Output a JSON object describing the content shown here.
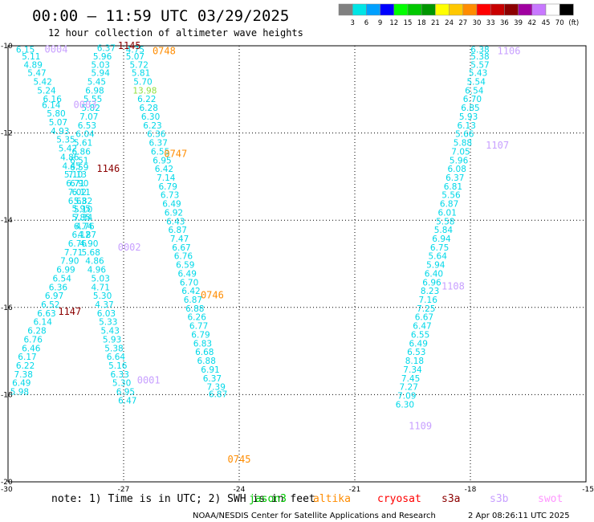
{
  "header": {
    "title": "00:00 — 11:59 UTC 03/29/2025",
    "subtitle": "12 hour collection of altimeter wave heights"
  },
  "colorbar": {
    "labels": [
      "3",
      "6",
      "9",
      "12",
      "15",
      "18",
      "21",
      "24",
      "27",
      "30",
      "33",
      "36",
      "39",
      "42",
      "45",
      "70"
    ],
    "unit": "(ft)",
    "colors": [
      "#808080",
      "#00e5e5",
      "#00a0ff",
      "#0000ff",
      "#00ff00",
      "#00c800",
      "#009600",
      "#ffff00",
      "#ffc800",
      "#ff8c00",
      "#ff0000",
      "#c80000",
      "#8c0000",
      "#a000a0",
      "#c878ff",
      "#ffffff",
      "#000000"
    ]
  },
  "footer": {
    "note": "note:  1) Time is in UTC; 2) SWH is in feet",
    "satellites": [
      {
        "name": "jason3",
        "color": "#00c800"
      },
      {
        "name": "altika",
        "color": "#ff8c00"
      },
      {
        "name": "cryosat",
        "color": "#ff0000"
      },
      {
        "name": "s3a",
        "color": "#8c0000"
      },
      {
        "name": "s3b",
        "color": "#c8a0ff"
      },
      {
        "name": "swot",
        "color": "#ff96ff"
      }
    ],
    "credit": "NOAA/NESDIS Center for Satellite Applications and Research",
    "timestamp": "2 Apr 08:26:11 UTC 2025"
  },
  "chart_data": {
    "type": "scatter",
    "title": "00:00 — 11:59 UTC 03/29/2025",
    "subtitle": "12 hour collection of altimeter wave heights",
    "xlabel": "",
    "ylabel": "",
    "x_ticks": [
      -30,
      -27,
      -24,
      -21,
      -18,
      -15
    ],
    "y_ticks": [
      -10,
      -12,
      -14,
      -16,
      -18,
      -20
    ],
    "xlim": [
      -30,
      -15
    ],
    "ylim": [
      -20,
      -10
    ],
    "grid": true,
    "value_unit": "ft",
    "point_color": "#00d8e8",
    "highlight_color": "#90e040",
    "series": [
      {
        "values": [
          6.15,
          5.11,
          4.89,
          5.47,
          5.42,
          5.24,
          6.16,
          6.14,
          5.8,
          5.07,
          4.93,
          5.35,
          5.42,
          4.86,
          4.45,
          5.1,
          6.71,
          7.02,
          6.63,
          5.95,
          7.34,
          6.74,
          6.12,
          6.76,
          7.71,
          7.9,
          6.99,
          6.54,
          6.36,
          6.97,
          6.52,
          6.63,
          6.14,
          6.28,
          6.76,
          6.46,
          6.17,
          6.22,
          7.38,
          6.49,
          5.98
        ],
        "points": [
          [
            -29.55,
            -10.08
          ],
          [
            -29.4,
            -10.24
          ],
          [
            -29.35,
            -10.43
          ],
          [
            -29.25,
            -10.62
          ],
          [
            -29.1,
            -10.82
          ],
          [
            -29.0,
            -11.02
          ],
          [
            -28.85,
            -11.22
          ],
          [
            -28.88,
            -11.35
          ],
          [
            -28.75,
            -11.55
          ],
          [
            -28.7,
            -11.75
          ],
          [
            -28.65,
            -11.95
          ],
          [
            -28.5,
            -12.15
          ],
          [
            -28.45,
            -12.35
          ],
          [
            -28.4,
            -12.55
          ],
          [
            -28.35,
            -12.75
          ],
          [
            -28.3,
            -12.95
          ],
          [
            -28.25,
            -13.15
          ],
          [
            -28.2,
            -13.35
          ],
          [
            -28.2,
            -13.55
          ],
          [
            -28.1,
            -13.73
          ],
          [
            -28.05,
            -13.93
          ],
          [
            -28.05,
            -14.13
          ],
          [
            -28.1,
            -14.33
          ],
          [
            -28.2,
            -14.53
          ],
          [
            -28.3,
            -14.73
          ],
          [
            -28.4,
            -14.93
          ],
          [
            -28.5,
            -15.13
          ],
          [
            -28.6,
            -15.33
          ],
          [
            -28.7,
            -15.53
          ],
          [
            -28.8,
            -15.73
          ],
          [
            -28.9,
            -15.93
          ],
          [
            -29.0,
            -16.13
          ],
          [
            -29.1,
            -16.33
          ],
          [
            -29.25,
            -16.53
          ],
          [
            -29.35,
            -16.73
          ],
          [
            -29.4,
            -16.93
          ],
          [
            -29.5,
            -17.13
          ],
          [
            -29.55,
            -17.33
          ],
          [
            -29.6,
            -17.53
          ],
          [
            -29.65,
            -17.73
          ],
          [
            -29.7,
            -17.93
          ]
        ]
      },
      {
        "values": [
          6.37,
          5.96,
          5.03,
          5.94,
          5.45,
          6.98,
          5.55,
          5.82,
          7.07,
          6.53,
          6.04,
          5.61,
          6.86,
          6.51,
          6.59,
          7.13,
          6.9,
          6.11,
          5.82,
          5.1,
          5.85,
          4.76,
          4.87,
          4.9,
          5.68,
          4.86,
          4.96,
          5.03,
          4.71,
          5.3,
          4.37,
          6.03,
          5.33,
          5.43,
          5.93,
          5.38,
          6.64,
          5.16,
          6.33,
          5.3,
          6.95,
          6.47
        ],
        "points": [
          [
            -27.45,
            -10.05
          ],
          [
            -27.55,
            -10.24
          ],
          [
            -27.6,
            -10.43
          ],
          [
            -27.6,
            -10.62
          ],
          [
            -27.7,
            -10.82
          ],
          [
            -27.75,
            -11.02
          ],
          [
            -27.8,
            -11.22
          ],
          [
            -27.85,
            -11.42
          ],
          [
            -27.9,
            -11.62
          ],
          [
            -27.95,
            -11.82
          ],
          [
            -28.0,
            -12.02
          ],
          [
            -28.05,
            -12.22
          ],
          [
            -28.1,
            -12.42
          ],
          [
            -28.15,
            -12.62
          ],
          [
            -28.15,
            -12.78
          ],
          [
            -28.2,
            -12.95
          ],
          [
            -28.15,
            -13.15
          ],
          [
            -28.1,
            -13.35
          ],
          [
            -28.05,
            -13.55
          ],
          [
            -28.05,
            -13.75
          ],
          [
            -28.1,
            -13.93
          ],
          [
            -28.0,
            -14.13
          ],
          [
            -27.95,
            -14.33
          ],
          [
            -27.9,
            -14.53
          ],
          [
            -27.85,
            -14.73
          ],
          [
            -27.75,
            -14.93
          ],
          [
            -27.7,
            -15.13
          ],
          [
            -27.6,
            -15.33
          ],
          [
            -27.6,
            -15.53
          ],
          [
            -27.55,
            -15.73
          ],
          [
            -27.5,
            -15.93
          ],
          [
            -27.45,
            -16.13
          ],
          [
            -27.4,
            -16.33
          ],
          [
            -27.35,
            -16.53
          ],
          [
            -27.3,
            -16.73
          ],
          [
            -27.25,
            -16.93
          ],
          [
            -27.2,
            -17.13
          ],
          [
            -27.15,
            -17.33
          ],
          [
            -27.1,
            -17.53
          ],
          [
            -27.05,
            -17.73
          ],
          [
            -26.95,
            -17.93
          ],
          [
            -26.9,
            -18.13
          ]
        ]
      },
      {
        "values": [
          4.75,
          5.07,
          5.72,
          5.81,
          5.7,
          13.98,
          6.22,
          6.28,
          6.3,
          6.23,
          6.36,
          6.37,
          6.55,
          6.95,
          6.42,
          7.14,
          6.79,
          6.73,
          6.49,
          6.92,
          6.43,
          6.87,
          7.47,
          6.67,
          6.76,
          6.59,
          6.49,
          6.7,
          6.42,
          6.87,
          6.88,
          6.26,
          6.77,
          6.79,
          6.83,
          6.68,
          6.88,
          6.91,
          6.37,
          7.39,
          6.87
        ],
        "points": [
          [
            -26.7,
            -10.08
          ],
          [
            -26.7,
            -10.24
          ],
          [
            -26.6,
            -10.43
          ],
          [
            -26.55,
            -10.62
          ],
          [
            -26.5,
            -10.82
          ],
          [
            -26.45,
            -11.02
          ],
          [
            -26.4,
            -11.22
          ],
          [
            -26.35,
            -11.42
          ],
          [
            -26.3,
            -11.62
          ],
          [
            -26.25,
            -11.82
          ],
          [
            -26.15,
            -12.02
          ],
          [
            -26.1,
            -12.22
          ],
          [
            -26.05,
            -12.42
          ],
          [
            -26.0,
            -12.62
          ],
          [
            -25.95,
            -12.82
          ],
          [
            -25.9,
            -13.02
          ],
          [
            -25.85,
            -13.22
          ],
          [
            -25.8,
            -13.42
          ],
          [
            -25.75,
            -13.62
          ],
          [
            -25.7,
            -13.82
          ],
          [
            -25.65,
            -14.02
          ],
          [
            -25.6,
            -14.22
          ],
          [
            -25.55,
            -14.42
          ],
          [
            -25.5,
            -14.62
          ],
          [
            -25.45,
            -14.82
          ],
          [
            -25.4,
            -15.02
          ],
          [
            -25.35,
            -15.22
          ],
          [
            -25.3,
            -15.42
          ],
          [
            -25.25,
            -15.62
          ],
          [
            -25.2,
            -15.82
          ],
          [
            -25.15,
            -16.02
          ],
          [
            -25.1,
            -16.22
          ],
          [
            -25.05,
            -16.42
          ],
          [
            -25.0,
            -16.62
          ],
          [
            -24.95,
            -16.82
          ],
          [
            -24.9,
            -17.02
          ],
          [
            -24.85,
            -17.22
          ],
          [
            -24.75,
            -17.42
          ],
          [
            -24.7,
            -17.62
          ],
          [
            -24.6,
            -17.82
          ],
          [
            -24.55,
            -17.98
          ]
        ]
      },
      {
        "values": [
          6.38,
          5.38,
          5.57,
          5.43,
          5.54,
          6.54,
          6.7,
          6.85,
          5.93,
          6.13,
          5.66,
          5.88,
          7.05,
          5.96,
          6.08,
          6.37,
          6.81,
          5.56,
          6.87,
          6.01,
          5.58,
          5.84,
          6.94,
          6.75,
          5.64,
          5.94,
          6.4,
          6.96,
          8.23,
          7.16,
          7.25,
          6.67,
          6.47,
          6.55,
          6.49,
          6.53,
          8.18,
          7.34,
          7.45,
          7.27,
          7.09,
          6.3
        ],
        "points": [
          [
            -17.75,
            -10.08
          ],
          [
            -17.75,
            -10.24
          ],
          [
            -17.75,
            -10.43
          ],
          [
            -17.8,
            -10.62
          ],
          [
            -17.85,
            -10.82
          ],
          [
            -17.9,
            -11.02
          ],
          [
            -17.95,
            -11.22
          ],
          [
            -18.0,
            -11.42
          ],
          [
            -18.05,
            -11.62
          ],
          [
            -18.1,
            -11.82
          ],
          [
            -18.15,
            -12.02
          ],
          [
            -18.2,
            -12.22
          ],
          [
            -18.25,
            -12.42
          ],
          [
            -18.3,
            -12.62
          ],
          [
            -18.35,
            -12.82
          ],
          [
            -18.4,
            -13.02
          ],
          [
            -18.45,
            -13.22
          ],
          [
            -18.5,
            -13.42
          ],
          [
            -18.55,
            -13.62
          ],
          [
            -18.6,
            -13.82
          ],
          [
            -18.65,
            -14.02
          ],
          [
            -18.7,
            -14.22
          ],
          [
            -18.75,
            -14.42
          ],
          [
            -18.8,
            -14.62
          ],
          [
            -18.85,
            -14.82
          ],
          [
            -18.9,
            -15.02
          ],
          [
            -18.95,
            -15.22
          ],
          [
            -19.0,
            -15.42
          ],
          [
            -19.05,
            -15.62
          ],
          [
            -19.1,
            -15.82
          ],
          [
            -19.15,
            -16.02
          ],
          [
            -19.2,
            -16.22
          ],
          [
            -19.25,
            -16.42
          ],
          [
            -19.3,
            -16.62
          ],
          [
            -19.35,
            -16.82
          ],
          [
            -19.4,
            -17.02
          ],
          [
            -19.45,
            -17.22
          ],
          [
            -19.5,
            -17.42
          ],
          [
            -19.55,
            -17.62
          ],
          [
            -19.6,
            -17.82
          ],
          [
            -19.65,
            -18.02
          ],
          [
            -19.7,
            -18.22
          ]
        ]
      }
    ],
    "pass_labels": [
      {
        "text": "0004",
        "x": -28.75,
        "y": -10.08,
        "color": "#c8a0ff"
      },
      {
        "text": "0003",
        "x": -28.0,
        "y": -11.35,
        "color": "#c8a0ff"
      },
      {
        "text": "0002",
        "x": -26.85,
        "y": -14.62,
        "color": "#c8a0ff"
      },
      {
        "text": "0001",
        "x": -26.35,
        "y": -17.67,
        "color": "#c8a0ff"
      },
      {
        "text": "1145",
        "x": -26.85,
        "y": -10.0,
        "color": "#8c0000"
      },
      {
        "text": "1146",
        "x": -27.4,
        "y": -12.82,
        "color": "#8c0000"
      },
      {
        "text": "1147",
        "x": -28.4,
        "y": -16.1,
        "color": "#8c0000"
      },
      {
        "text": "0748",
        "x": -25.95,
        "y": -10.12,
        "color": "#ff8c00"
      },
      {
        "text": "0747",
        "x": -25.65,
        "y": -12.48,
        "color": "#ff8c00"
      },
      {
        "text": "0746",
        "x": -24.7,
        "y": -15.72,
        "color": "#ff8c00"
      },
      {
        "text": "0745",
        "x": -24.0,
        "y": -19.48,
        "color": "#ff8c00"
      },
      {
        "text": "1106",
        "x": -17.0,
        "y": -10.12,
        "color": "#c8a0ff"
      },
      {
        "text": "1107",
        "x": -17.3,
        "y": -12.28,
        "color": "#c8a0ff"
      },
      {
        "text": "1108",
        "x": -18.45,
        "y": -15.52,
        "color": "#c8a0ff"
      },
      {
        "text": "1109",
        "x": -19.3,
        "y": -18.72,
        "color": "#c8a0ff"
      }
    ]
  }
}
